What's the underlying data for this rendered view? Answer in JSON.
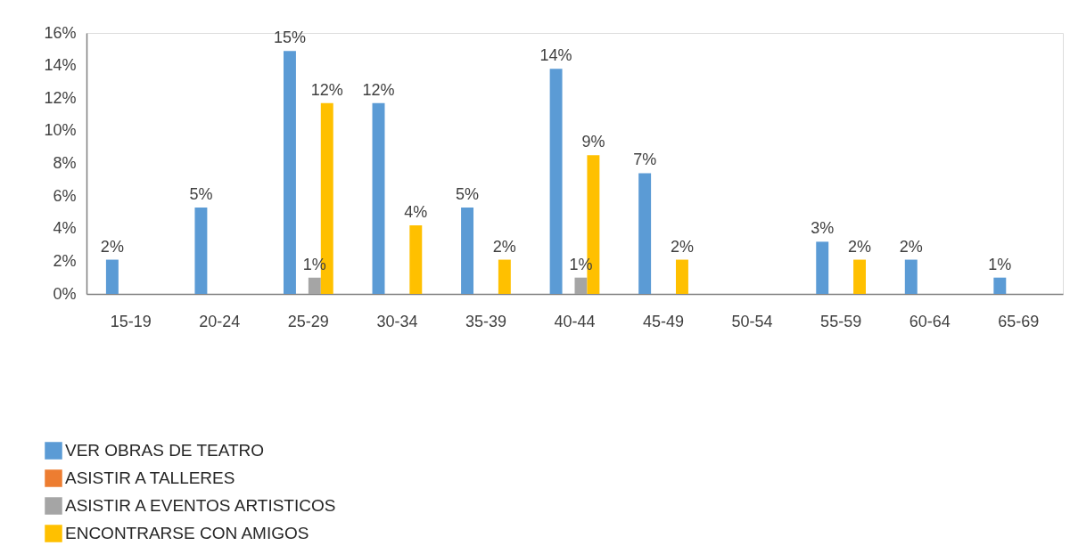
{
  "chart_data": {
    "type": "bar",
    "categories": [
      "15-19",
      "20-24",
      "25-29",
      "30-34",
      "35-39",
      "40-44",
      "45-49",
      "50-54",
      "55-59",
      "60-64",
      "65-69"
    ],
    "series": [
      {
        "name": "VER OBRAS DE TEATRO",
        "color": "#5b9bd5",
        "values": [
          2.1,
          5.3,
          14.9,
          11.7,
          5.3,
          13.8,
          7.4,
          null,
          3.2,
          2.1,
          1.0
        ],
        "value_labels": [
          "2%",
          "5%",
          "15%",
          "12%",
          "5%",
          "14%",
          "7%",
          null,
          "3%",
          "2%",
          "1%"
        ]
      },
      {
        "name": "ASISTIR A TALLERES",
        "color": "#ed7d31",
        "values": [
          null,
          null,
          null,
          null,
          null,
          null,
          null,
          null,
          null,
          null,
          null
        ]
      },
      {
        "name": "ASISTIR A EVENTOS ARTISTICOS",
        "color": "#a5a5a5",
        "values": [
          null,
          null,
          1.0,
          null,
          null,
          1.0,
          null,
          null,
          null,
          null,
          null
        ],
        "value_labels": [
          null,
          null,
          "1%",
          null,
          null,
          "1%",
          null,
          null,
          null,
          null,
          null
        ]
      },
      {
        "name": "ENCONTRARSE CON AMIGOS",
        "color": "#ffc000",
        "values": [
          null,
          null,
          11.7,
          4.2,
          2.1,
          8.5,
          2.1,
          null,
          2.1,
          null,
          null
        ],
        "value_labels": [
          null,
          null,
          "12%",
          "4%",
          "2%",
          "9%",
          "2%",
          null,
          "2%",
          null,
          null
        ]
      }
    ],
    "ylim": [
      0,
      16
    ],
    "yticks": [
      {
        "value": 0,
        "label": "0%"
      },
      {
        "value": 2,
        "label": "2%"
      },
      {
        "value": 4,
        "label": "4%"
      },
      {
        "value": 6,
        "label": "6%"
      },
      {
        "value": 8,
        "label": "8%"
      },
      {
        "value": 10,
        "label": "10%"
      },
      {
        "value": 12,
        "label": "12%"
      },
      {
        "value": 14,
        "label": "14%"
      },
      {
        "value": 16,
        "label": "16%"
      }
    ],
    "grid": false,
    "legend": "bottom left"
  }
}
